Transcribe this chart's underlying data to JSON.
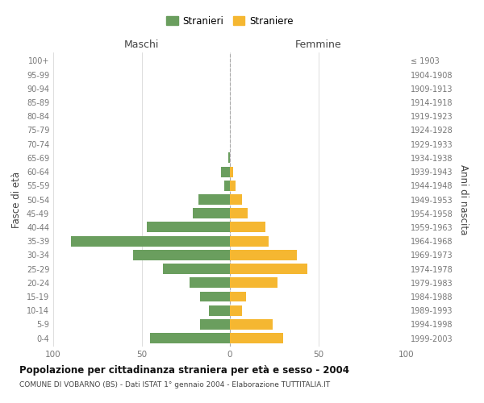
{
  "age_groups": [
    "100+",
    "95-99",
    "90-94",
    "85-89",
    "80-84",
    "75-79",
    "70-74",
    "65-69",
    "60-64",
    "55-59",
    "50-54",
    "45-49",
    "40-44",
    "35-39",
    "30-34",
    "25-29",
    "20-24",
    "15-19",
    "10-14",
    "5-9",
    "0-4"
  ],
  "birth_years": [
    "≤ 1903",
    "1904-1908",
    "1909-1913",
    "1914-1918",
    "1919-1923",
    "1924-1928",
    "1929-1933",
    "1934-1938",
    "1939-1943",
    "1944-1948",
    "1949-1953",
    "1954-1958",
    "1959-1963",
    "1964-1968",
    "1969-1973",
    "1974-1978",
    "1979-1983",
    "1984-1988",
    "1989-1993",
    "1994-1998",
    "1999-2003"
  ],
  "maschi": [
    0,
    0,
    0,
    0,
    0,
    0,
    0,
    1,
    5,
    3,
    18,
    21,
    47,
    90,
    55,
    38,
    23,
    17,
    12,
    17,
    45
  ],
  "femmine": [
    0,
    0,
    0,
    0,
    0,
    0,
    0,
    0,
    2,
    3,
    7,
    10,
    20,
    22,
    38,
    44,
    27,
    9,
    7,
    24,
    30
  ],
  "maschi_color": "#6a9e5e",
  "femmine_color": "#f5b731",
  "background_color": "#ffffff",
  "grid_color": "#d0d0d0",
  "title": "Popolazione per cittadinanza straniera per età e sesso - 2004",
  "subtitle": "COMUNE DI VOBARNO (BS) - Dati ISTAT 1° gennaio 2004 - Elaborazione TUTTITALIA.IT",
  "xlabel_left": "Maschi",
  "xlabel_right": "Femmine",
  "ylabel_left": "Fasce di età",
  "ylabel_right": "Anni di nascita",
  "legend_maschi": "Stranieri",
  "legend_femmine": "Straniere",
  "xlim": 100,
  "bar_height": 0.75
}
